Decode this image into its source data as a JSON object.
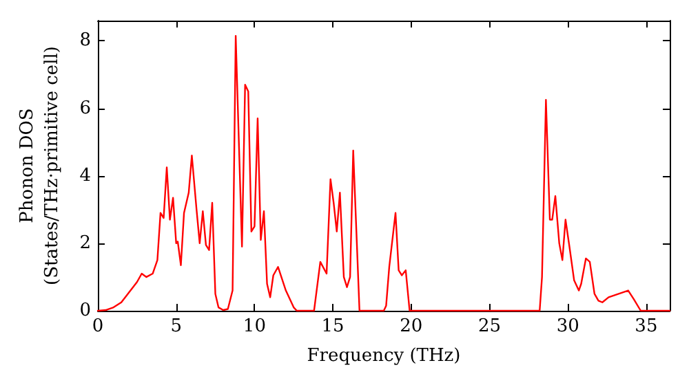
{
  "chart_data": {
    "type": "line",
    "xlabel": "Frequency (THz)",
    "ylabel": "Phonon DOS\n(States/THz·primitive cell)",
    "xlim": [
      0,
      36.5
    ],
    "xticks": [
      0,
      5,
      10,
      15,
      20,
      25,
      30,
      35
    ],
    "ylim": [
      0,
      8.6
    ],
    "yticks": [
      0,
      2,
      4,
      6,
      8
    ],
    "marker": "none",
    "line_style": "solid",
    "series": [
      {
        "color": "#ff0000",
        "x": [
          0,
          0.5,
          1,
          1.5,
          2,
          2.5,
          2.8,
          3.1,
          3.5,
          3.8,
          4.0,
          4.2,
          4.4,
          4.6,
          4.8,
          5.0,
          5.1,
          5.3,
          5.5,
          5.8,
          6.0,
          6.3,
          6.5,
          6.7,
          6.9,
          7.1,
          7.3,
          7.5,
          7.7,
          8.0,
          8.3,
          8.6,
          8.8,
          9.2,
          9.4,
          9.6,
          9.8,
          10.0,
          10.2,
          10.4,
          10.6,
          10.8,
          11.0,
          11.2,
          11.5,
          12.0,
          12.5,
          12.7,
          13.8,
          14.2,
          14.6,
          14.85,
          15.05,
          15.25,
          15.45,
          15.7,
          15.9,
          16.1,
          16.3,
          16.7,
          18.25,
          18.4,
          18.6,
          19.0,
          19.2,
          19.4,
          19.65,
          19.9,
          28.2,
          28.35,
          28.6,
          28.85,
          29.0,
          29.2,
          29.45,
          29.65,
          29.85,
          30.1,
          30.4,
          30.7,
          30.85,
          31.15,
          31.4,
          31.7,
          31.95,
          32.2,
          32.6,
          33.85,
          34.2,
          34.65,
          36.5
        ],
        "values": [
          0,
          0.02,
          0.1,
          0.25,
          0.55,
          0.85,
          1.1,
          1.0,
          1.1,
          1.5,
          2.9,
          2.75,
          4.25,
          2.7,
          3.35,
          2.0,
          2.05,
          1.35,
          2.9,
          3.5,
          4.6,
          3.0,
          2.0,
          2.95,
          1.95,
          1.8,
          3.2,
          0.5,
          0.1,
          0.02,
          0.05,
          0.6,
          8.15,
          1.9,
          6.7,
          6.5,
          2.35,
          2.5,
          5.7,
          2.1,
          2.95,
          0.8,
          0.4,
          1.05,
          1.3,
          0.6,
          0.1,
          0,
          0,
          1.45,
          1.1,
          3.9,
          3.2,
          2.35,
          3.5,
          1.0,
          0.7,
          1.0,
          4.75,
          0,
          0,
          0.15,
          1.3,
          2.9,
          1.2,
          1.05,
          1.2,
          0,
          0,
          1.0,
          6.25,
          2.7,
          2.7,
          3.4,
          2.0,
          1.5,
          2.7,
          1.9,
          0.9,
          0.6,
          0.8,
          1.55,
          1.45,
          0.5,
          0.3,
          0.25,
          0.4,
          0.6,
          0.35,
          0,
          0
        ]
      }
    ]
  }
}
